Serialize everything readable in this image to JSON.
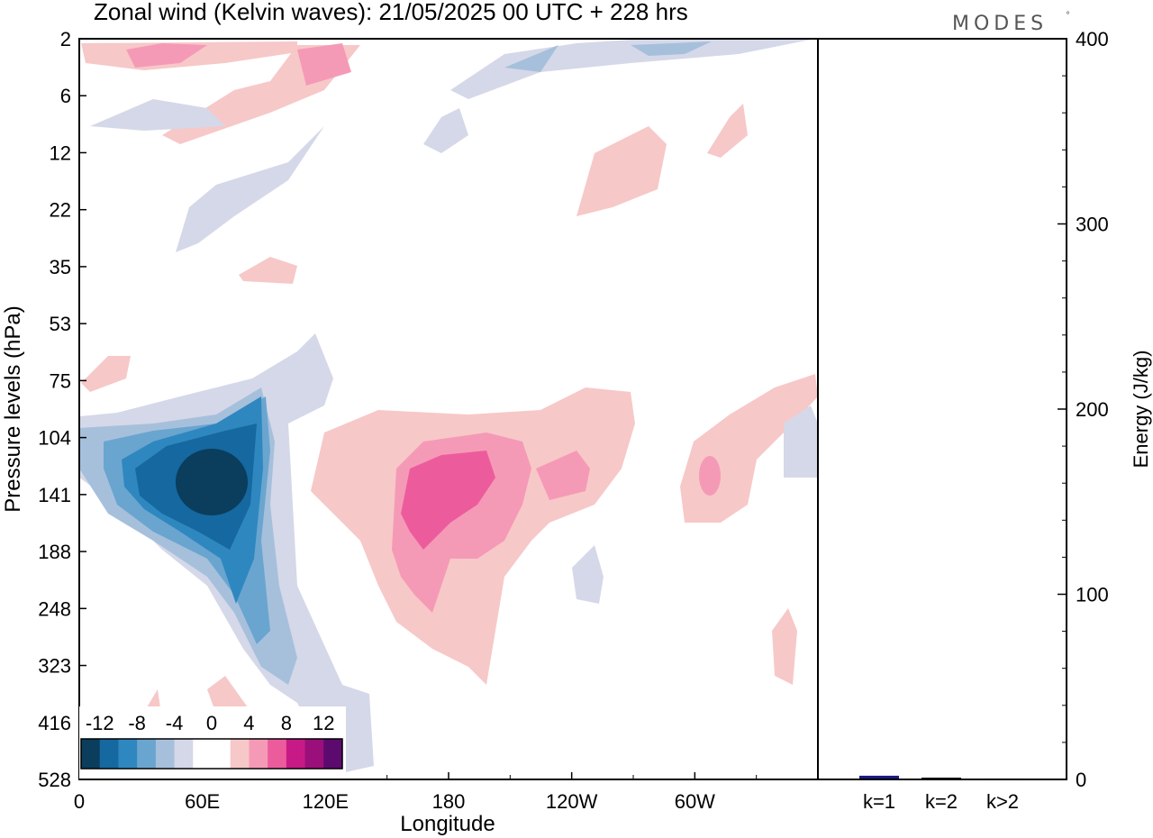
{
  "header": {
    "title": "Zonal wind (Kelvin waves):  21/05/2025  00 UTC  + 228 hrs",
    "brand": "MODES",
    "brand_mark": "°"
  },
  "colors": {
    "frame": "#000000",
    "scale": [
      "#0b3d5c",
      "#1568a0",
      "#2f87c0",
      "#6aa5cf",
      "#a6c0dc",
      "#d5d8e8",
      "#ffffff",
      "#ffffff",
      "#f7c8c8",
      "#f59ab6",
      "#ec5c9c",
      "#c81a86",
      "#9b0f7a",
      "#5c0a6e"
    ],
    "bar_k1": "#1a1a80",
    "bar_k2": "#1a1a1a",
    "bar_k3": "#4a4a4a"
  },
  "chart_data": [
    {
      "type": "heatmap",
      "title": "Zonal wind (Kelvin waves):  21/05/2025  00 UTC  + 228 hrs",
      "xlabel": "Longitude",
      "ylabel": "Pressure levels (hPa)",
      "x_ticks": [
        "0",
        "60E",
        "120E",
        "180",
        "120W",
        "60W"
      ],
      "x_tick_degrees": [
        0,
        60,
        120,
        180,
        240,
        300
      ],
      "xlim": [
        0,
        360
      ],
      "y_levels": [
        "2",
        "6",
        "12",
        "22",
        "35",
        "53",
        "75",
        "104",
        "141",
        "188",
        "248",
        "323",
        "416",
        "528"
      ],
      "y_axis": "pressure levels, evenly spaced, 2 hPa at top, 528 hPa at bottom",
      "colorbar": {
        "labels": [
          "-12",
          "-8",
          "-4",
          "0",
          "4",
          "8",
          "12"
        ],
        "levels": [
          -14,
          -12,
          -10,
          -8,
          -6,
          -4,
          -2,
          0,
          2,
          4,
          6,
          8,
          10,
          12,
          14
        ]
      },
      "features": [
        {
          "sign": "negative",
          "center_lon": 65,
          "center_level": "141",
          "peak": -13
        },
        {
          "sign": "positive",
          "center_lon": 170,
          "center_level": "141",
          "peak": 7
        },
        {
          "sign": "positive",
          "center_lon": 300,
          "center_level": "141",
          "peak": 5
        }
      ]
    },
    {
      "type": "bar",
      "ylabel": "Energy (J/kg)",
      "ylim": [
        0,
        400
      ],
      "y_ticks": [
        "0",
        "100",
        "200",
        "300",
        "400"
      ],
      "categories": [
        "k=1",
        "k=2",
        "k>2"
      ],
      "values": [
        2,
        1,
        0.5
      ]
    }
  ]
}
